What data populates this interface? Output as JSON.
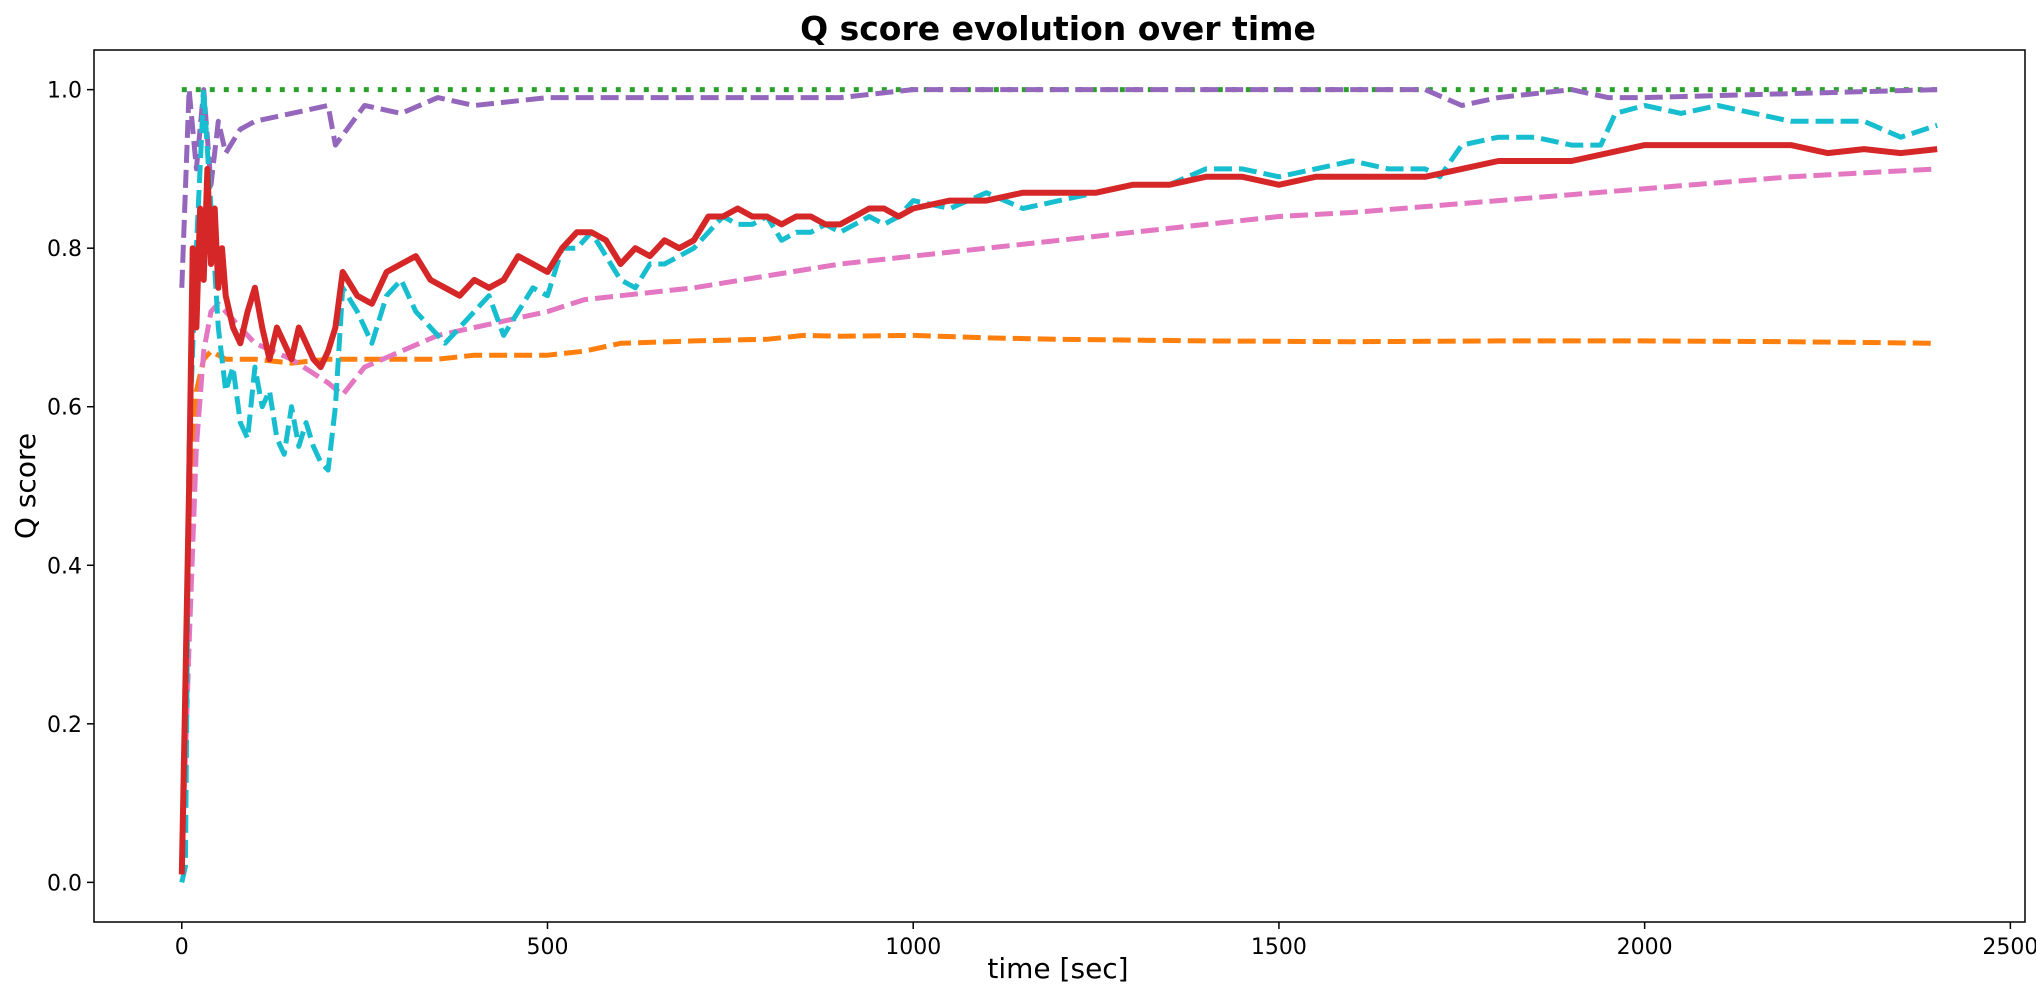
{
  "chart_data": {
    "type": "line",
    "title": "Q score evolution over time",
    "xlabel": "time [sec]",
    "ylabel": "Q score",
    "xlim": [
      -120,
      2520
    ],
    "ylim": [
      -0.05,
      1.05
    ],
    "xticks": [
      0,
      500,
      1000,
      1500,
      2000,
      2500
    ],
    "xtick_labels": [
      "0",
      "500",
      "1000",
      "1500",
      "2000",
      "2500"
    ],
    "yticks": [
      0.0,
      0.2,
      0.4,
      0.6,
      0.8,
      1.0
    ],
    "ytick_labels": [
      "0.0",
      "0.2",
      "0.4",
      "0.6",
      "0.8",
      "1.0"
    ],
    "grid": false,
    "series": [
      {
        "name": "green-dotted",
        "color": "#2ca02c",
        "style": "dotted",
        "width": 5,
        "x": [
          0,
          2400
        ],
        "y": [
          1.0,
          1.0
        ]
      },
      {
        "name": "purple-dashed",
        "color": "#9467bd",
        "style": "dashed",
        "width": 5,
        "x": [
          0,
          10,
          20,
          30,
          40,
          50,
          60,
          80,
          100,
          150,
          200,
          210,
          250,
          300,
          350,
          400,
          500,
          600,
          700,
          800,
          900,
          1000,
          1200,
          1400,
          1600,
          1700,
          1750,
          1800,
          1900,
          1950,
          2000,
          2400
        ],
        "y": [
          0.75,
          1.0,
          0.9,
          1.0,
          0.88,
          0.96,
          0.92,
          0.95,
          0.96,
          0.97,
          0.98,
          0.93,
          0.98,
          0.97,
          0.99,
          0.98,
          0.99,
          0.99,
          0.99,
          0.99,
          0.99,
          1.0,
          1.0,
          1.0,
          1.0,
          1.0,
          0.98,
          0.99,
          1.0,
          0.99,
          0.99,
          1.0
        ]
      },
      {
        "name": "orange-dashed",
        "color": "#ff7f0e",
        "style": "dashed",
        "width": 5,
        "x": [
          0,
          10,
          20,
          30,
          40,
          60,
          100,
          150,
          200,
          250,
          300,
          350,
          400,
          450,
          500,
          550,
          600,
          700,
          800,
          850,
          900,
          1000,
          1100,
          1200,
          1400,
          1600,
          1800,
          2000,
          2200,
          2400
        ],
        "y": [
          0.02,
          0.4,
          0.62,
          0.66,
          0.67,
          0.66,
          0.66,
          0.655,
          0.66,
          0.66,
          0.66,
          0.66,
          0.665,
          0.665,
          0.665,
          0.67,
          0.68,
          0.683,
          0.685,
          0.69,
          0.689,
          0.69,
          0.687,
          0.685,
          0.683,
          0.682,
          0.683,
          0.683,
          0.682,
          0.68
        ]
      },
      {
        "name": "pink-dashed",
        "color": "#e377c2",
        "style": "dashed",
        "width": 5,
        "x": [
          0,
          10,
          20,
          30,
          40,
          50,
          70,
          100,
          150,
          200,
          220,
          250,
          300,
          350,
          400,
          450,
          500,
          550,
          600,
          700,
          800,
          900,
          1000,
          1100,
          1200,
          1300,
          1400,
          1500,
          1600,
          1800,
          2000,
          2200,
          2400
        ],
        "y": [
          0.02,
          0.3,
          0.55,
          0.67,
          0.72,
          0.73,
          0.71,
          0.68,
          0.66,
          0.63,
          0.615,
          0.65,
          0.67,
          0.69,
          0.7,
          0.71,
          0.72,
          0.735,
          0.74,
          0.75,
          0.765,
          0.78,
          0.79,
          0.8,
          0.81,
          0.82,
          0.83,
          0.84,
          0.845,
          0.86,
          0.875,
          0.89,
          0.9
        ]
      },
      {
        "name": "cyan-dashed",
        "color": "#17becf",
        "style": "dashed",
        "width": 5,
        "x": [
          0,
          5,
          10,
          20,
          30,
          40,
          50,
          60,
          70,
          80,
          90,
          100,
          110,
          120,
          130,
          140,
          150,
          160,
          170,
          180,
          190,
          200,
          210,
          220,
          240,
          260,
          280,
          300,
          320,
          340,
          360,
          380,
          400,
          420,
          440,
          460,
          480,
          500,
          520,
          540,
          560,
          580,
          600,
          620,
          640,
          660,
          680,
          700,
          720,
          740,
          760,
          780,
          800,
          820,
          840,
          860,
          880,
          900,
          920,
          940,
          960,
          980,
          1000,
          1050,
          1100,
          1150,
          1200,
          1250,
          1300,
          1350,
          1400,
          1450,
          1500,
          1550,
          1600,
          1650,
          1700,
          1720,
          1750,
          1800,
          1850,
          1900,
          1940,
          1960,
          2000,
          2050,
          2100,
          2200,
          2300,
          2350,
          2400
        ],
        "y": [
          0.0,
          0.02,
          0.55,
          0.8,
          1.0,
          0.85,
          0.7,
          0.62,
          0.65,
          0.58,
          0.56,
          0.65,
          0.6,
          0.62,
          0.56,
          0.54,
          0.6,
          0.55,
          0.58,
          0.55,
          0.53,
          0.52,
          0.6,
          0.75,
          0.72,
          0.68,
          0.74,
          0.76,
          0.72,
          0.7,
          0.68,
          0.7,
          0.72,
          0.74,
          0.69,
          0.72,
          0.75,
          0.74,
          0.8,
          0.8,
          0.82,
          0.79,
          0.76,
          0.75,
          0.78,
          0.78,
          0.79,
          0.8,
          0.82,
          0.84,
          0.83,
          0.83,
          0.84,
          0.81,
          0.82,
          0.82,
          0.83,
          0.82,
          0.83,
          0.84,
          0.83,
          0.84,
          0.86,
          0.85,
          0.87,
          0.85,
          0.86,
          0.87,
          0.88,
          0.88,
          0.9,
          0.9,
          0.89,
          0.9,
          0.91,
          0.9,
          0.9,
          0.89,
          0.93,
          0.94,
          0.94,
          0.93,
          0.93,
          0.97,
          0.98,
          0.97,
          0.98,
          0.96,
          0.96,
          0.94,
          0.955
        ]
      },
      {
        "name": "red-solid",
        "color": "#d62728",
        "style": "solid",
        "width": 6,
        "x": [
          0,
          5,
          10,
          15,
          20,
          25,
          30,
          35,
          40,
          45,
          50,
          55,
          60,
          70,
          80,
          90,
          100,
          110,
          120,
          130,
          140,
          150,
          160,
          170,
          180,
          190,
          200,
          210,
          220,
          240,
          260,
          280,
          300,
          320,
          340,
          360,
          380,
          400,
          420,
          440,
          460,
          480,
          500,
          520,
          540,
          560,
          580,
          600,
          620,
          640,
          660,
          680,
          700,
          720,
          740,
          760,
          780,
          800,
          820,
          840,
          860,
          880,
          900,
          920,
          940,
          960,
          980,
          1000,
          1050,
          1100,
          1150,
          1200,
          1250,
          1300,
          1350,
          1400,
          1450,
          1500,
          1550,
          1600,
          1650,
          1700,
          1750,
          1800,
          1850,
          1900,
          1950,
          2000,
          2050,
          2100,
          2150,
          2200,
          2250,
          2300,
          2350,
          2400
        ],
        "y": [
          0.01,
          0.25,
          0.5,
          0.8,
          0.7,
          0.85,
          0.76,
          0.9,
          0.78,
          0.85,
          0.75,
          0.8,
          0.74,
          0.7,
          0.68,
          0.72,
          0.75,
          0.7,
          0.66,
          0.7,
          0.68,
          0.66,
          0.7,
          0.68,
          0.66,
          0.65,
          0.67,
          0.7,
          0.77,
          0.74,
          0.73,
          0.77,
          0.78,
          0.79,
          0.76,
          0.75,
          0.74,
          0.76,
          0.75,
          0.76,
          0.79,
          0.78,
          0.77,
          0.8,
          0.82,
          0.82,
          0.81,
          0.78,
          0.8,
          0.79,
          0.81,
          0.8,
          0.81,
          0.84,
          0.84,
          0.85,
          0.84,
          0.84,
          0.83,
          0.84,
          0.84,
          0.83,
          0.83,
          0.84,
          0.85,
          0.85,
          0.84,
          0.85,
          0.86,
          0.86,
          0.87,
          0.87,
          0.87,
          0.88,
          0.88,
          0.89,
          0.89,
          0.88,
          0.89,
          0.89,
          0.89,
          0.89,
          0.9,
          0.91,
          0.91,
          0.91,
          0.92,
          0.93,
          0.93,
          0.93,
          0.93,
          0.93,
          0.92,
          0.925,
          0.92,
          0.925
        ]
      }
    ]
  }
}
